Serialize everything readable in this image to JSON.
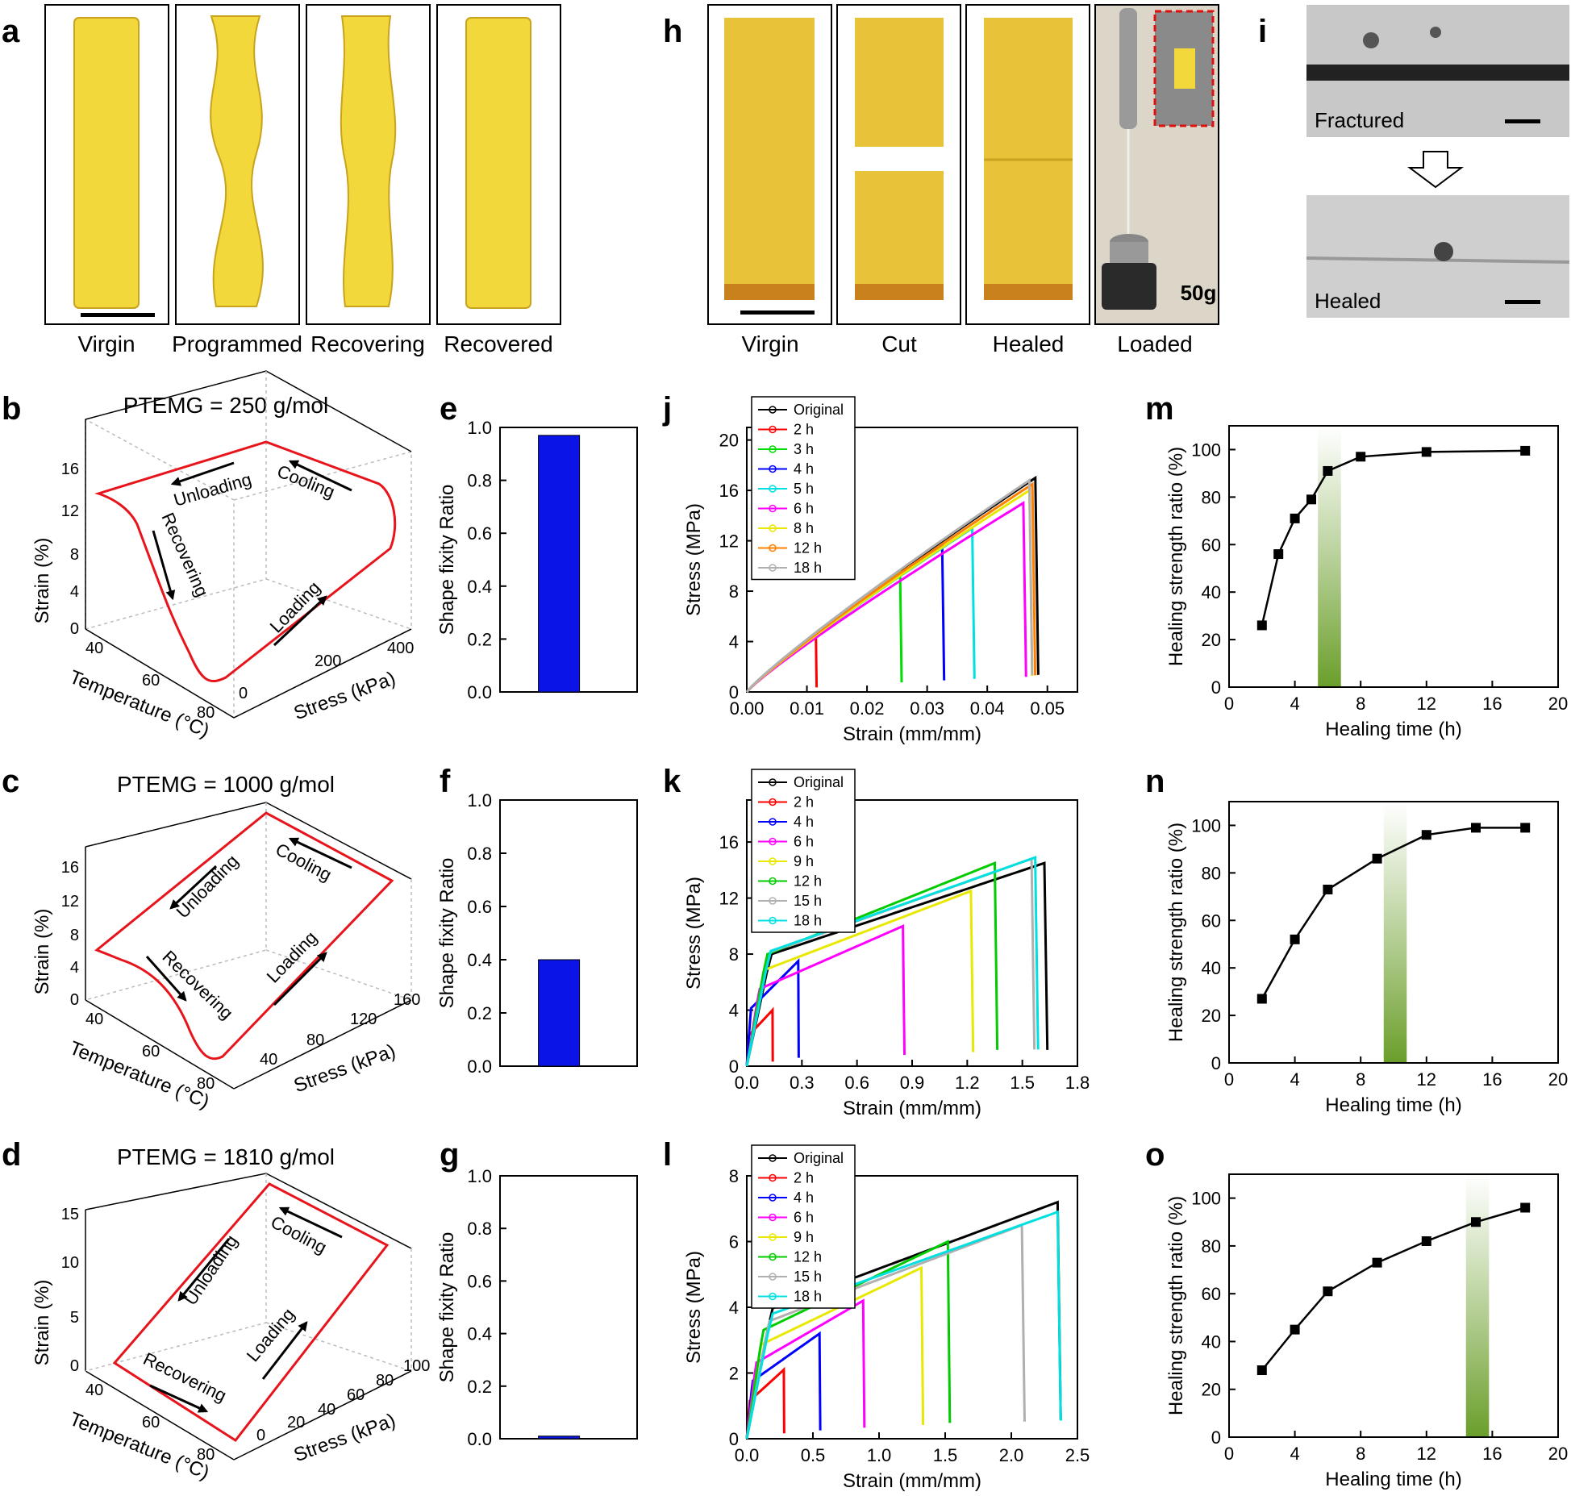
{
  "panels": {
    "a": "a",
    "b": "b",
    "c": "c",
    "d": "d",
    "e": "e",
    "f": "f",
    "g": "g",
    "h": "h",
    "i": "i",
    "j": "j",
    "k": "k",
    "l": "l",
    "m": "m",
    "n": "n",
    "o": "o"
  },
  "photos_a": {
    "labels": [
      "Virgin",
      "Programmed",
      "Recovering",
      "Recovered"
    ]
  },
  "photos_h": {
    "labels": [
      "Virgin",
      "Cut",
      "Healed",
      "Loaded"
    ],
    "weight": "50g"
  },
  "micro_i": {
    "top": "Fractured",
    "bottom": "Healed"
  },
  "colors": {
    "specimen": "#f2d83a",
    "specimen_edge": "#c9a21e",
    "cycle_red": "#e8141c",
    "bar_blue": "#0a14e6",
    "heal_green": "#7fab3c"
  },
  "chart_data": [
    {
      "panel": "b",
      "type": "line-3d",
      "title": "PTEMG = 250 g/mol",
      "xlabel": "Temperature (°C)",
      "ylabel": "Stress (kPa)",
      "zlabel": "Strain (%)",
      "temp_ticks": [
        "40",
        "60",
        "80"
      ],
      "stress_ticks": [
        "0",
        "200",
        "400"
      ],
      "strain_ticks": [
        "0",
        "4",
        "8",
        "12",
        "16"
      ],
      "annotations": [
        "Unloading",
        "Cooling",
        "Recovering",
        "Loading"
      ]
    },
    {
      "panel": "c",
      "type": "line-3d",
      "title": "PTEMG = 1000 g/mol",
      "xlabel": "Temperature (°C)",
      "ylabel": "Stress (kPa)",
      "zlabel": "Strain (%)",
      "temp_ticks": [
        "40",
        "60",
        "80"
      ],
      "stress_ticks": [
        "40",
        "80",
        "120",
        "160"
      ],
      "strain_ticks": [
        "0",
        "4",
        "8",
        "12",
        "16"
      ],
      "annotations": [
        "Unloading",
        "Cooling",
        "Recovering",
        "Loading"
      ]
    },
    {
      "panel": "d",
      "type": "line-3d",
      "title": "PTEMG = 1810 g/mol",
      "xlabel": "Temperature (°C)",
      "ylabel": "Stress (kPa)",
      "zlabel": "Strain (%)",
      "temp_ticks": [
        "40",
        "60",
        "80"
      ],
      "stress_ticks": [
        "0",
        "20",
        "40",
        "60",
        "80",
        "100"
      ],
      "strain_ticks": [
        "0",
        "5",
        "10",
        "15"
      ],
      "annotations": [
        "Unloading",
        "Cooling",
        "Recovering",
        "Loading"
      ]
    },
    {
      "panel": "e",
      "type": "bar",
      "ylabel": "Shape fixity Ratio",
      "ylim": [
        0,
        1
      ],
      "yticks": [
        "0.0",
        "0.2",
        "0.4",
        "0.6",
        "0.8",
        "1.0"
      ],
      "values": [
        0.97
      ]
    },
    {
      "panel": "f",
      "type": "bar",
      "ylabel": "Shape fixity Ratio",
      "ylim": [
        0,
        1
      ],
      "yticks": [
        "0.0",
        "0.2",
        "0.4",
        "0.6",
        "0.8",
        "1.0"
      ],
      "values": [
        0.4
      ]
    },
    {
      "panel": "g",
      "type": "bar",
      "ylabel": "Shape fixity Ratio",
      "ylim": [
        0,
        1
      ],
      "yticks": [
        "0.0",
        "0.2",
        "0.4",
        "0.6",
        "0.8",
        "1.0"
      ],
      "values": [
        0.01
      ]
    },
    {
      "panel": "j",
      "type": "line",
      "xlabel": "Strain (mm/mm)",
      "ylabel": "Stress (MPa)",
      "xlim": [
        0,
        0.055
      ],
      "ylim": [
        0,
        21
      ],
      "xticks": [
        "0.00",
        "0.01",
        "0.02",
        "0.03",
        "0.04",
        "0.05"
      ],
      "yticks": [
        "0",
        "4",
        "8",
        "12",
        "16",
        "20"
      ],
      "legend_position": "top-left",
      "series": [
        {
          "name": "Original",
          "color": "#000000",
          "end_strain": 0.048,
          "end_stress": 17.0
        },
        {
          "name": "2 h",
          "color": "#ff0000",
          "end_strain": 0.0115,
          "end_stress": 4.5
        },
        {
          "name": "3 h",
          "color": "#00dd00",
          "end_strain": 0.0255,
          "end_stress": 9.5
        },
        {
          "name": "4 h",
          "color": "#0000ff",
          "end_strain": 0.0325,
          "end_stress": 11.5
        },
        {
          "name": "5 h",
          "color": "#00e0e0",
          "end_strain": 0.0375,
          "end_stress": 13.0
        },
        {
          "name": "6 h",
          "color": "#ff00ff",
          "end_strain": 0.046,
          "end_stress": 15.0
        },
        {
          "name": "8 h",
          "color": "#e8e800",
          "end_strain": 0.047,
          "end_stress": 16.0
        },
        {
          "name": "12 h",
          "color": "#ff8000",
          "end_strain": 0.0475,
          "end_stress": 16.5
        },
        {
          "name": "18 h",
          "color": "#b0b0b0",
          "end_strain": 0.047,
          "end_stress": 16.8
        }
      ]
    },
    {
      "panel": "k",
      "type": "line",
      "xlabel": "Strain (mm/mm)",
      "ylabel": "Stress (MPa)",
      "xlim": [
        0,
        1.8
      ],
      "ylim": [
        0,
        19
      ],
      "xticks": [
        "0.0",
        "0.3",
        "0.6",
        "0.9",
        "1.2",
        "1.5",
        "1.8"
      ],
      "yticks": [
        "0",
        "4",
        "8",
        "12",
        "16"
      ],
      "legend_position": "top-left",
      "series": [
        {
          "name": "Original",
          "color": "#000000",
          "end_strain": 1.62,
          "end_stress": 14.5
        },
        {
          "name": "2 h",
          "color": "#ff0000",
          "end_strain": 0.14,
          "end_stress": 4.0
        },
        {
          "name": "4 h",
          "color": "#0000ff",
          "end_strain": 0.28,
          "end_stress": 7.5
        },
        {
          "name": "6 h",
          "color": "#ff00ff",
          "end_strain": 0.85,
          "end_stress": 10.0
        },
        {
          "name": "9 h",
          "color": "#e8e800",
          "end_strain": 1.22,
          "end_stress": 12.5
        },
        {
          "name": "12 h",
          "color": "#00cc00",
          "end_strain": 1.35,
          "end_stress": 14.5
        },
        {
          "name": "15 h",
          "color": "#b0b0b0",
          "end_strain": 1.55,
          "end_stress": 14.8
        },
        {
          "name": "18 h",
          "color": "#00e0e0",
          "end_strain": 1.57,
          "end_stress": 14.9
        }
      ]
    },
    {
      "panel": "l",
      "type": "line",
      "xlabel": "Strain (mm/mm)",
      "ylabel": "Stress (MPa)",
      "xlim": [
        0,
        2.5
      ],
      "ylim": [
        0,
        8
      ],
      "xticks": [
        "0.0",
        "0.5",
        "1.0",
        "1.5",
        "2.0",
        "2.5"
      ],
      "yticks": [
        "0",
        "2",
        "4",
        "6",
        "8"
      ],
      "legend_position": "top-left",
      "series": [
        {
          "name": "Original",
          "color": "#000000",
          "end_strain": 2.35,
          "end_stress": 7.2
        },
        {
          "name": "2 h",
          "color": "#ff0000",
          "end_strain": 0.28,
          "end_stress": 2.1
        },
        {
          "name": "4 h",
          "color": "#0000ff",
          "end_strain": 0.55,
          "end_stress": 3.2
        },
        {
          "name": "6 h",
          "color": "#ff00ff",
          "end_strain": 0.88,
          "end_stress": 4.2
        },
        {
          "name": "9 h",
          "color": "#e8e800",
          "end_strain": 1.32,
          "end_stress": 5.2
        },
        {
          "name": "12 h",
          "color": "#00cc00",
          "end_strain": 1.52,
          "end_stress": 6.0
        },
        {
          "name": "15 h",
          "color": "#b0b0b0",
          "end_strain": 2.08,
          "end_stress": 6.5
        },
        {
          "name": "18 h",
          "color": "#00e0e0",
          "end_strain": 2.35,
          "end_stress": 6.9
        }
      ]
    },
    {
      "panel": "m",
      "type": "scatter-line",
      "xlabel": "Healing time (h)",
      "ylabel": "Healing strength ratio (%)",
      "xlim": [
        0,
        20
      ],
      "ylim": [
        0,
        110
      ],
      "xticks": [
        "0",
        "4",
        "8",
        "12",
        "16",
        "20"
      ],
      "yticks": [
        "0",
        "20",
        "40",
        "60",
        "80",
        "100"
      ],
      "x": [
        2,
        3,
        4,
        5,
        6,
        8,
        12,
        18
      ],
      "y": [
        26,
        56,
        71,
        79,
        91,
        97,
        99,
        99.5
      ],
      "highlight_band": [
        5.4,
        6.8
      ]
    },
    {
      "panel": "n",
      "type": "scatter-line",
      "xlabel": "Healing time (h)",
      "ylabel": "Healing strength ratio (%)",
      "xlim": [
        0,
        20
      ],
      "ylim": [
        0,
        110
      ],
      "xticks": [
        "0",
        "4",
        "8",
        "12",
        "16",
        "20"
      ],
      "yticks": [
        "0",
        "20",
        "40",
        "60",
        "80",
        "100"
      ],
      "x": [
        2,
        4,
        6,
        9,
        12,
        15,
        18
      ],
      "y": [
        27,
        52,
        73,
        86,
        96,
        99,
        99
      ],
      "highlight_band": [
        9.4,
        10.8
      ]
    },
    {
      "panel": "o",
      "type": "scatter-line",
      "xlabel": "Healing time (h)",
      "ylabel": "Healing strength ratio (%)",
      "xlim": [
        0,
        20
      ],
      "ylim": [
        0,
        110
      ],
      "xticks": [
        "0",
        "4",
        "8",
        "12",
        "16",
        "20"
      ],
      "yticks": [
        "0",
        "20",
        "40",
        "60",
        "80",
        "100"
      ],
      "x": [
        2,
        4,
        6,
        9,
        12,
        15,
        18
      ],
      "y": [
        28,
        45,
        61,
        73,
        82,
        90,
        96
      ],
      "highlight_band": [
        14.4,
        15.8
      ]
    }
  ]
}
